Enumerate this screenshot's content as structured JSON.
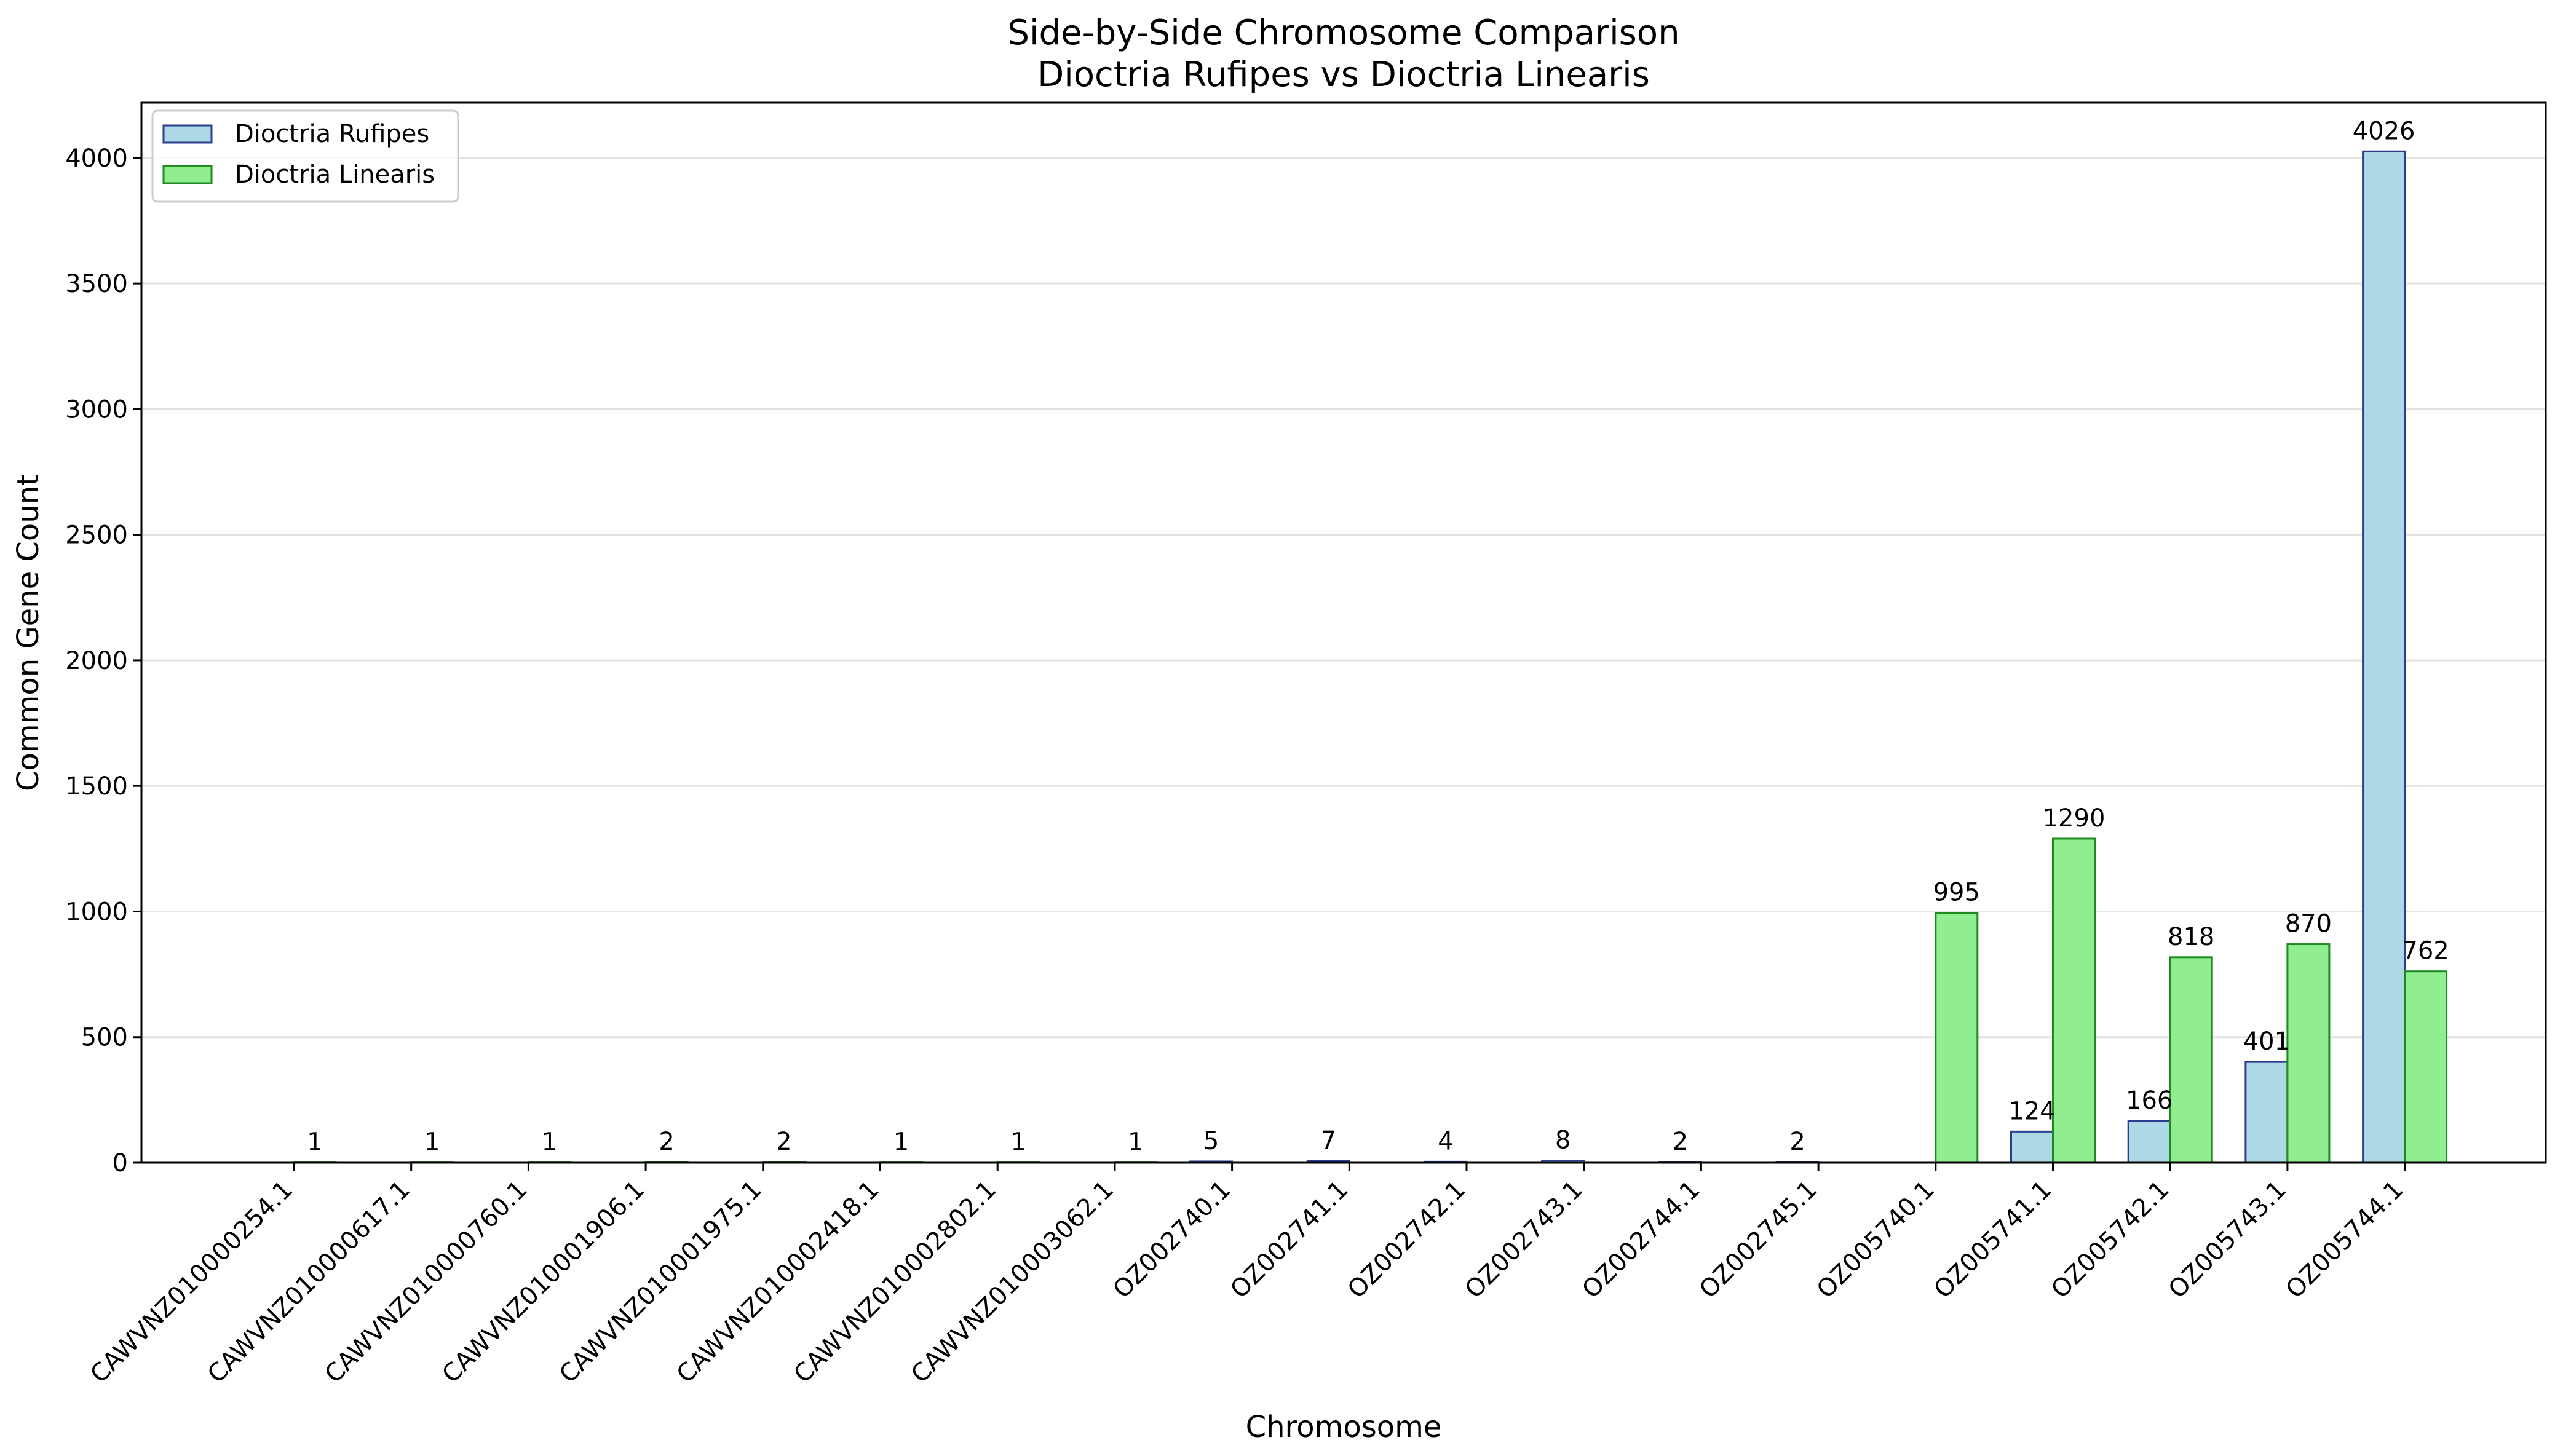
{
  "chart_data": {
    "type": "bar",
    "title": "Side-by-Side Chromosome Comparison",
    "subtitle": "Dioctria Rufipes vs Dioctria Linearis",
    "xlabel": "Chromosome",
    "ylabel": "Common Gene Count",
    "ylim": [
      0,
      4220
    ],
    "yticks": [
      0,
      500,
      1000,
      1500,
      2000,
      2500,
      3000,
      3500,
      4000
    ],
    "grid": "horizontal",
    "legend_position": "upper-left",
    "categories": [
      "CAWVNZ010000254.1",
      "CAWVNZ010000617.1",
      "CAWVNZ010000760.1",
      "CAWVNZ010001906.1",
      "CAWVNZ010001975.1",
      "CAWVNZ010002418.1",
      "CAWVNZ010002802.1",
      "CAWVNZ010003062.1",
      "OZ002740.1",
      "OZ002741.1",
      "OZ002742.1",
      "OZ002743.1",
      "OZ002744.1",
      "OZ002745.1",
      "OZ005740.1",
      "OZ005741.1",
      "OZ005742.1",
      "OZ005743.1",
      "OZ005744.1"
    ],
    "series": [
      {
        "name": "Dioctria Rufipes",
        "color": "#add8e6",
        "edge_color": "#2b3d8f",
        "values": [
          0,
          0,
          0,
          0,
          0,
          0,
          0,
          0,
          5,
          7,
          4,
          8,
          2,
          2,
          0,
          124,
          166,
          401,
          4026
        ],
        "labels": [
          "",
          "",
          "",
          "",
          "",
          "",
          "",
          "",
          "5",
          "7",
          "4",
          "8",
          "2",
          "2",
          "",
          "124",
          "166",
          "401",
          "4026"
        ]
      },
      {
        "name": "Dioctria Linearis",
        "color": "#90ee90",
        "edge_color": "#1f8a1f",
        "values": [
          1,
          1,
          1,
          2,
          2,
          1,
          1,
          1,
          0,
          0,
          0,
          0,
          0,
          0,
          995,
          1290,
          818,
          870,
          762
        ],
        "labels": [
          "1",
          "1",
          "1",
          "2",
          "2",
          "1",
          "1",
          "1",
          "",
          "",
          "",
          "",
          "",
          "",
          "995",
          "1290",
          "818",
          "870",
          "762"
        ]
      }
    ]
  }
}
